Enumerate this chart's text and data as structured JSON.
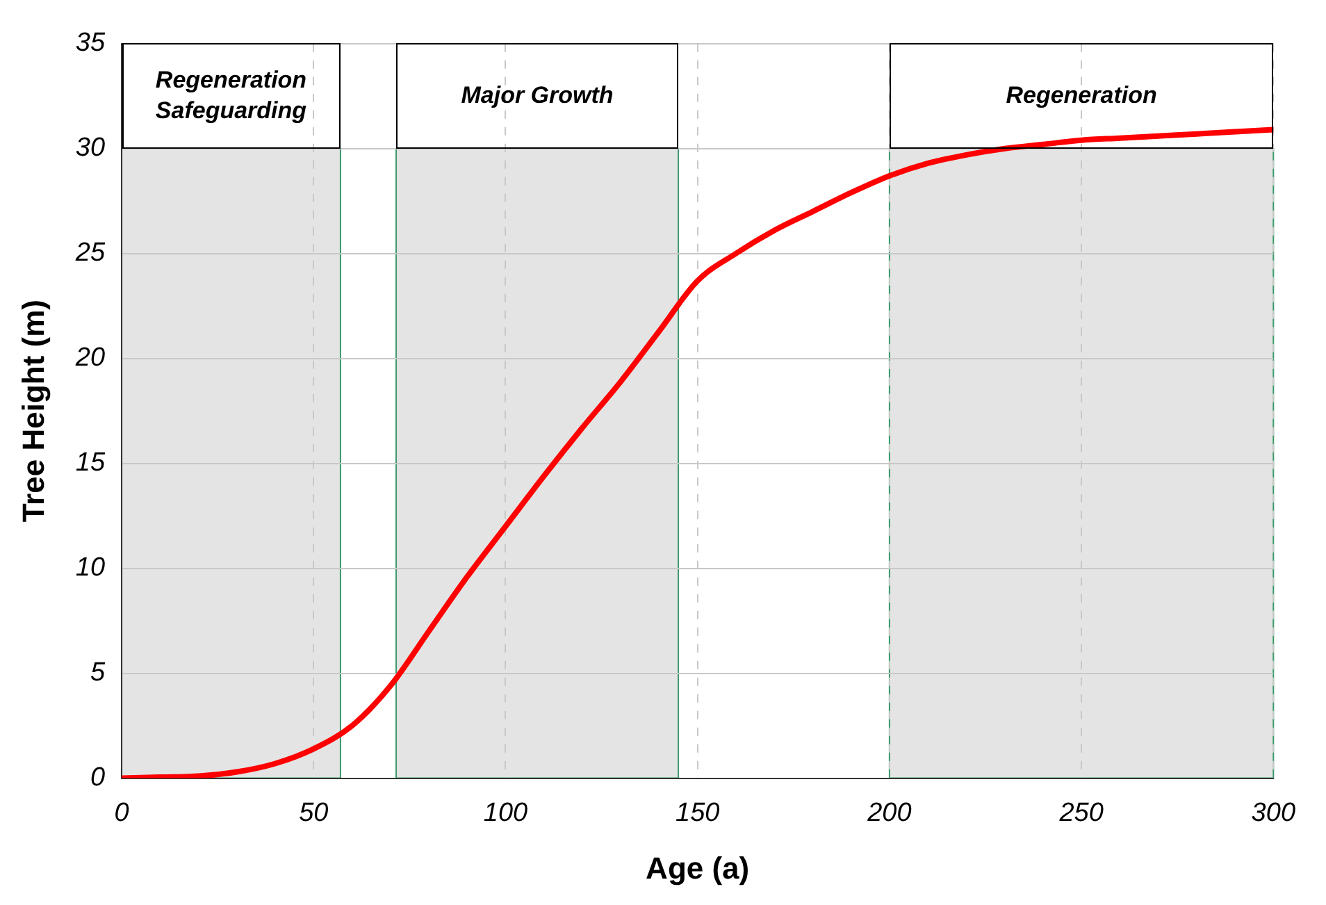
{
  "chart_data": {
    "type": "line",
    "xlabel": "Age (a)",
    "ylabel": "Tree Height (m)",
    "x": [
      0,
      10,
      20,
      30,
      40,
      50,
      60,
      70,
      80,
      90,
      100,
      110,
      120,
      130,
      140,
      150,
      160,
      170,
      180,
      190,
      200,
      210,
      220,
      230,
      240,
      250,
      260,
      270,
      280,
      290,
      300
    ],
    "series": [
      {
        "color": "#ff0000",
        "values": [
          0,
          0.05,
          0.1,
          0.3,
          0.7,
          1.4,
          2.5,
          4.4,
          7.0,
          9.6,
          12.0,
          14.4,
          16.7,
          18.9,
          21.3,
          23.7,
          25.0,
          26.1,
          27.0,
          27.9,
          28.7,
          29.3,
          29.7,
          30.0,
          30.2,
          30.4,
          30.5,
          30.6,
          30.7,
          30.8,
          30.9
        ]
      }
    ],
    "xlim": [
      0,
      300
    ],
    "xticks": [
      0,
      50,
      100,
      150,
      200,
      250,
      300
    ],
    "ylim": [
      0,
      35
    ],
    "yticks": [
      0,
      5,
      10,
      15,
      20,
      25,
      30,
      35
    ],
    "grid": true,
    "legend": false,
    "marker": "none",
    "line_style": "solid",
    "bands": [
      {
        "axis": "x",
        "from": 0,
        "to": 57,
        "label": "Regeneration Safeguarding",
        "color": "#e4e4e4"
      },
      {
        "axis": "x",
        "from": 71.5,
        "to": 145,
        "label": "Major Growth",
        "color": "#e4e4e4"
      },
      {
        "axis": "x",
        "from": 200,
        "to": 300,
        "label": "Regeneration",
        "color": "#e4e4e4"
      }
    ]
  }
}
